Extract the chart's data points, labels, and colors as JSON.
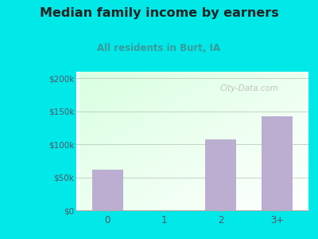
{
  "title": "Median family income by earners",
  "subtitle": "All residents in Burt, IA",
  "categories": [
    "0",
    "1",
    "2",
    "3+"
  ],
  "values": [
    62000,
    0,
    108000,
    143000
  ],
  "bar_color": "#bbaed0",
  "title_color": "#222222",
  "subtitle_color": "#3a9a9a",
  "bg_color": "#00e8e8",
  "yticks": [
    0,
    50000,
    100000,
    150000,
    200000
  ],
  "ytick_labels": [
    "$0",
    "$50k",
    "$100k",
    "$150k",
    "$200k"
  ],
  "ylim": [
    0,
    210000
  ],
  "watermark": "City-Data.com",
  "gradient_topleft": [
    0.85,
    1.0,
    0.88
  ],
  "gradient_bottomright": [
    1.0,
    1.0,
    1.0
  ]
}
